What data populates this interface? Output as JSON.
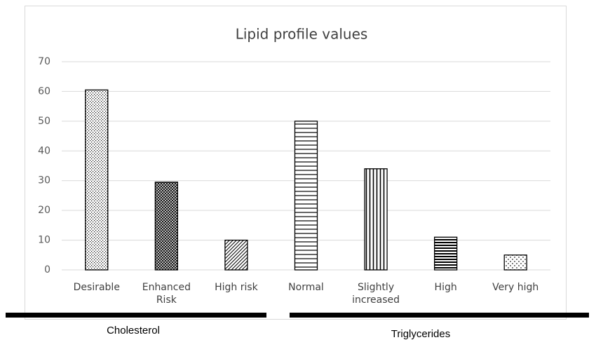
{
  "chart_data": {
    "type": "bar",
    "title": "Lipid profile values",
    "categories": [
      "Desirable",
      "Enhanced Risk",
      "High risk",
      "Normal",
      "Slightly increased",
      "High",
      "Very high"
    ],
    "values": [
      60.5,
      29.5,
      10,
      50,
      34,
      11,
      5
    ],
    "color": "#000000",
    "ylim": [
      0,
      70
    ],
    "yticks": [
      0,
      10,
      20,
      30,
      40,
      50,
      60,
      70
    ],
    "grid": true,
    "groups": [
      "Cholesterol",
      "Triglycerides"
    ]
  }
}
